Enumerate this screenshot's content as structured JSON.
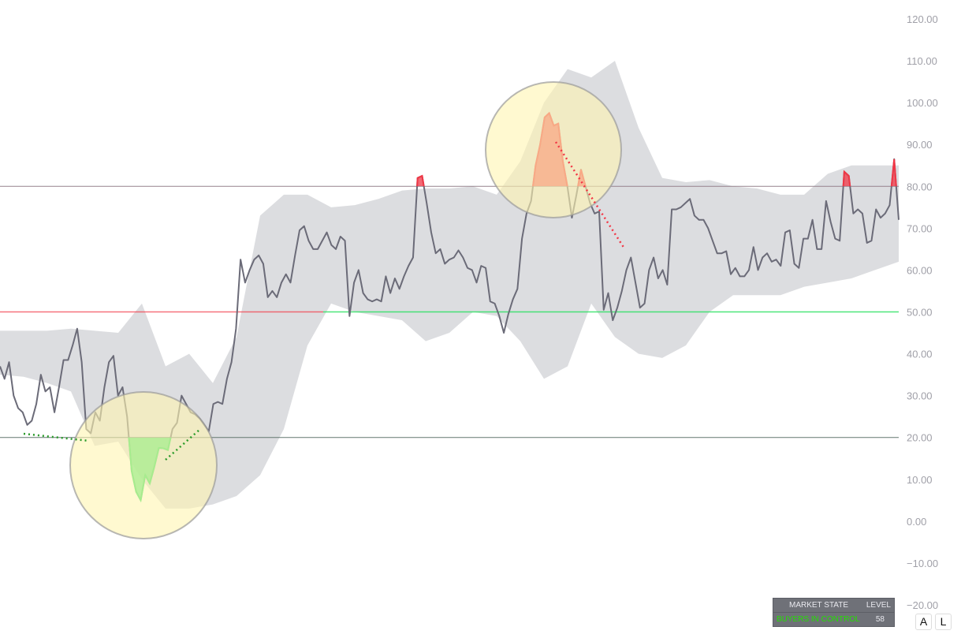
{
  "chart_data": {
    "type": "line",
    "ylim": [
      -20,
      120
    ],
    "yticks": [
      "120.00",
      "110.00",
      "100.00",
      "90.00",
      "80.00",
      "70.00",
      "60.00",
      "50.00",
      "40.00",
      "30.00",
      "20.00",
      "10.00",
      "0.00",
      "−10.00",
      "−20.00"
    ],
    "levels": {
      "overbought": 80,
      "mid": 50,
      "oversold": 20
    },
    "series": [
      {
        "values": [
          37,
          34,
          38,
          30,
          27,
          26,
          23,
          24,
          28,
          35,
          31,
          32,
          26,
          32,
          38.5,
          38.5,
          42,
          46,
          38,
          22,
          21,
          26,
          24,
          32,
          38,
          39.5,
          30,
          32,
          25,
          12,
          7,
          5,
          11,
          9,
          13,
          17.5,
          17.4,
          17,
          22,
          23.5,
          30,
          28,
          26,
          25.5,
          24.5,
          23,
          21.5,
          28,
          28.5,
          28,
          34,
          38,
          46,
          62.5,
          57,
          60,
          62.5,
          63.5,
          61.5,
          53.5,
          55,
          53.5,
          57,
          59,
          57,
          63.5,
          69.5,
          70.5,
          67,
          65,
          65,
          67,
          69,
          66,
          65,
          68,
          67,
          49,
          57,
          60,
          54.5,
          53,
          52.5,
          53,
          52.5,
          58.5,
          54.5,
          58,
          55.5,
          58.5,
          61,
          63,
          82,
          82.5,
          76,
          69,
          64,
          65,
          61.5,
          62.5,
          63,
          64.7,
          63,
          60.5,
          60,
          57,
          61,
          60.5,
          52.5,
          52,
          49,
          45,
          49.5,
          53,
          55.5,
          67.5,
          73.5,
          76.5,
          85,
          90,
          96.5,
          97.5,
          94.5,
          95,
          86,
          80,
          72.5,
          78,
          84,
          80,
          76,
          73.5,
          74,
          50.5,
          54.5,
          48,
          51,
          55,
          60,
          63,
          57,
          51,
          52,
          60,
          63,
          58,
          60,
          56.5,
          74.5,
          74.5,
          75,
          76,
          77,
          73,
          72,
          72,
          70,
          67,
          64,
          64,
          64.5,
          59,
          60.5,
          58.5,
          58.5,
          60,
          65.5,
          60,
          63,
          64,
          62,
          62.5,
          61,
          69,
          69.5,
          61.5,
          60.5,
          67.5,
          67.5,
          72,
          65,
          65,
          76.5,
          71.5,
          67.5,
          67,
          83.5,
          82.5,
          73.5,
          74.5,
          73.5,
          66.5,
          67,
          74.5,
          72.5,
          73.5,
          75.5,
          86.5,
          72
        ]
      }
    ],
    "band_upper": [
      45.5,
      45.5,
      45.5,
      46,
      45.5,
      45,
      52,
      37,
      40,
      33,
      44,
      73,
      78,
      78,
      75,
      75.5,
      77,
      79,
      79.5,
      79.5,
      80,
      78,
      86,
      100,
      108,
      106,
      110,
      94,
      82,
      81,
      81.5,
      80,
      79.5,
      78,
      78,
      83,
      85,
      85,
      85
    ],
    "band_lower": [
      35,
      34.5,
      33,
      31,
      18,
      19,
      10,
      3,
      3,
      4,
      6,
      11,
      22,
      42,
      52,
      50,
      49,
      48,
      43,
      45,
      50,
      49,
      43,
      34,
      37,
      52,
      44,
      40,
      39,
      42,
      50,
      54,
      54,
      54,
      56,
      57,
      58,
      60,
      62
    ],
    "colors": {
      "line": "#6b6b78",
      "band": "#dcdde0",
      "overbought": "#f23645",
      "oversold": "#22e05a",
      "highlight": "#fff7c4"
    }
  },
  "market_state": {
    "header_state": "MARKET STATE",
    "header_level": "LEVEL",
    "state": "BUYERS IN CONTROL",
    "level": "58",
    "state_color": "#22e000"
  },
  "buttons": {
    "auto": "A",
    "log": "L"
  }
}
